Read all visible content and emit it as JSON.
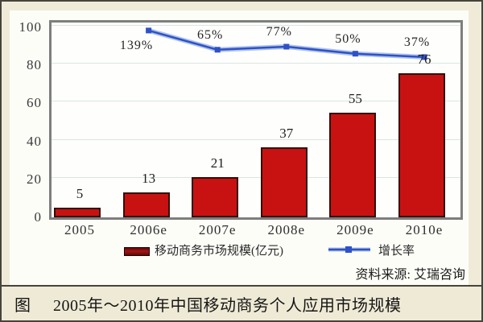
{
  "chart_data": {
    "type": "bar",
    "subtype": "bar-and-line-combo",
    "title": "",
    "categories": [
      "2005",
      "2006e",
      "2007e",
      "2008e",
      "2009e",
      "2010e"
    ],
    "series": [
      {
        "name": "移动商务市场规模(亿元)",
        "type": "bar",
        "values": [
          5,
          13,
          21,
          37,
          55,
          76
        ],
        "color": "#c81212"
      },
      {
        "name": "增长率",
        "type": "line",
        "unit": "%",
        "start_category": "2006e",
        "values": [
          139,
          65,
          77,
          50,
          37
        ],
        "color": "#2d52c8"
      }
    ],
    "y_axis": {
      "ticks": [
        0,
        20,
        40,
        60,
        80,
        100
      ],
      "range": [
        0,
        100
      ]
    },
    "x_axis": {
      "label": ""
    },
    "grid": true,
    "legend_position": "bottom"
  },
  "source_note": "资料来源: 艾瑞咨询",
  "caption": {
    "prefix": "图",
    "text": "2005年～2010年中国移动商务个人应用市场规模"
  },
  "colors": {
    "background": "#f0ebd8",
    "panel": "#fdfdf8",
    "bar_fill": "#c81212",
    "bar_border": "#330d06",
    "line": "#2d52c8",
    "line_halo": "#a9bde9",
    "grid": "#d9e6e2",
    "plot_border": "#7e7e7e",
    "frame_border": "#46443c",
    "text": "#2a2a2a"
  }
}
